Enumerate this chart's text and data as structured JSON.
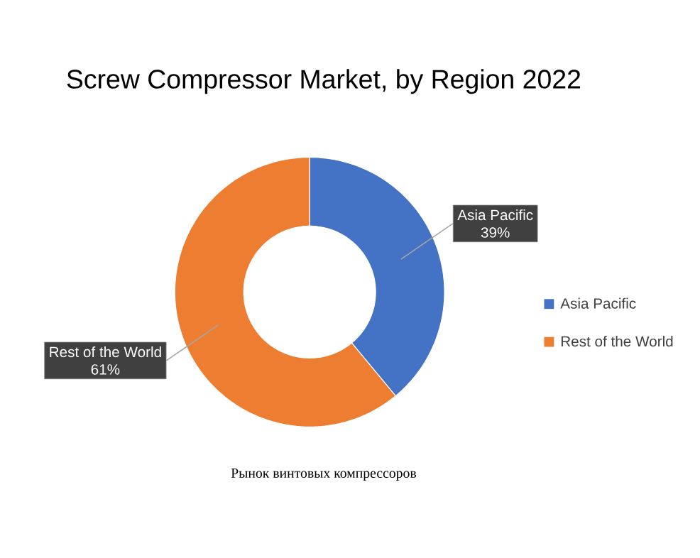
{
  "chart_data": {
    "type": "donut",
    "title": "Screw Compressor Market, by Region 2022",
    "categories": [
      "Asia Pacific",
      "Rest of the World"
    ],
    "values": [
      39,
      61
    ],
    "value_labels": [
      "39%",
      "61%"
    ],
    "colors": [
      "#4472c4",
      "#ed7d31"
    ],
    "legend": "right",
    "annotations": [
      "Рынок винтовых компрессоров"
    ]
  }
}
